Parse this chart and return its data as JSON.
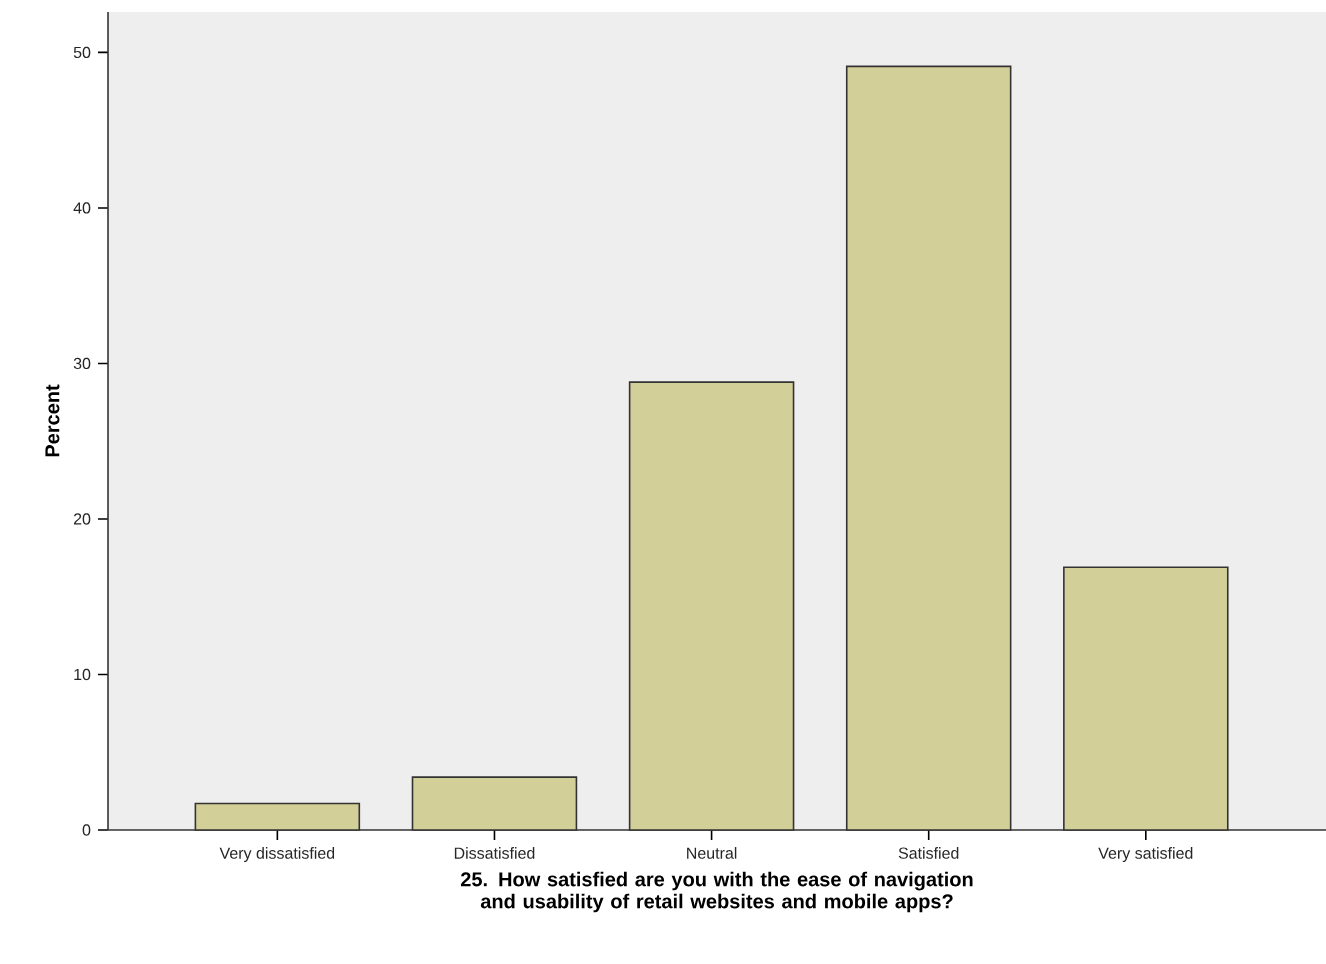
{
  "chart_data": {
    "type": "bar",
    "xlabel": "25. How satisfied are you with the ease of navigation and usability of retail websites and mobile apps?",
    "ylabel": "Percent",
    "categories": [
      "Very dissatisfied",
      "Dissatisfied",
      "Neutral",
      "Satisfied",
      "Very satisfied"
    ],
    "values": [
      1.7,
      3.4,
      28.8,
      49.1,
      16.9
    ],
    "color": "#d3cf98",
    "ylim": [
      0,
      52.6
    ],
    "yticks": [
      0,
      10,
      20,
      30,
      40,
      50
    ],
    "grid": false
  }
}
